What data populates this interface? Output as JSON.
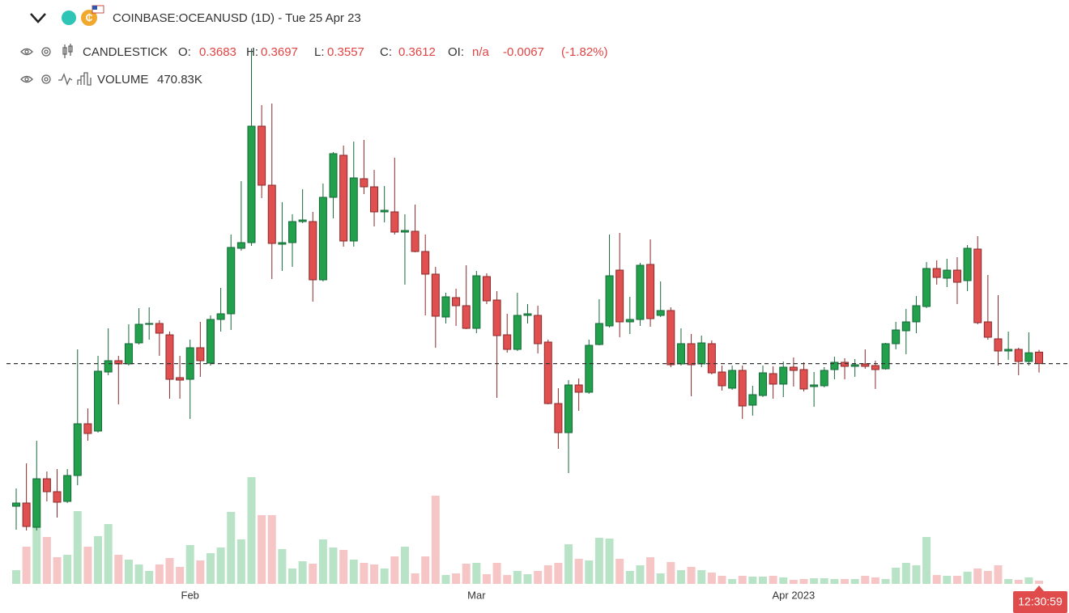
{
  "chart_data": {
    "type": "candlestick",
    "title": "COINBASE:OCEANUSD (1D) - Tue 25 Apr 23",
    "legend": {
      "name": "CANDLESTICK",
      "o": "O:",
      "h": "H:",
      "l": "L:",
      "c": "C:",
      "oi": "OI:",
      "oi_value": "n/a",
      "change": "-0.0067",
      "change_pct": "(-1.82%)"
    },
    "volume_name": "VOLUME",
    "volume_label": "470.83K",
    "time_label": "12:30:59",
    "colors": {
      "up": "#22a04b",
      "up_edge": "#17693a",
      "down": "#e05050",
      "down_edge": "#8a2a2a",
      "vol_up": "#b9e3c6",
      "vol_down": "#f6c6c6",
      "price_line": "#333333",
      "time_box": "#e04b4b"
    },
    "ylim": [
      0.225,
      0.586
    ],
    "vlim": [
      0,
      20000000
    ],
    "categories": [
      null,
      null,
      null,
      null,
      null,
      null,
      null,
      null,
      null,
      null,
      null,
      null,
      null,
      null,
      null,
      null,
      null,
      "Feb",
      null,
      null,
      null,
      null,
      null,
      null,
      null,
      null,
      null,
      null,
      null,
      null,
      null,
      null,
      null,
      null,
      null,
      null,
      null,
      null,
      null,
      null,
      null,
      null,
      null,
      null,
      null,
      "Mar",
      null,
      null,
      null,
      null,
      null,
      null,
      null,
      null,
      null,
      null,
      null,
      null,
      null,
      null,
      null,
      null,
      null,
      null,
      null,
      null,
      null,
      null,
      null,
      null,
      null,
      null,
      null,
      null,
      null,
      null,
      "Apr 2023",
      null,
      null,
      null,
      null,
      null,
      null,
      null,
      null,
      null,
      null,
      null,
      null,
      null,
      null,
      null,
      null,
      null,
      null,
      null,
      null,
      null,
      null,
      null,
      null
    ],
    "open": [
      0.273,
      0.275,
      0.26,
      0.29,
      0.282,
      0.276,
      0.292,
      0.324,
      0.3195,
      0.356,
      0.363,
      0.361,
      0.374,
      0.3855,
      0.386,
      0.379,
      0.3525,
      0.3515,
      0.371,
      0.3615,
      0.3885,
      0.392,
      0.4325,
      0.436,
      0.508,
      0.4715,
      0.435,
      0.436,
      0.449,
      0.449,
      0.413,
      0.464,
      0.49,
      0.437,
      0.4755,
      0.4705,
      0.455,
      0.455,
      0.4425,
      0.443,
      0.4305,
      0.4165,
      0.39,
      0.402,
      0.397,
      0.383,
      0.415,
      0.4005,
      0.379,
      0.37,
      0.391,
      0.391,
      0.3745,
      0.3365,
      0.3185,
      0.348,
      0.3435,
      0.373,
      0.3845,
      0.419,
      0.387,
      0.3885,
      0.4225,
      0.391,
      0.394,
      0.361,
      0.3735,
      0.361,
      0.3735,
      0.356,
      0.346,
      0.357,
      0.3355,
      0.3415,
      0.355,
      0.3485,
      0.359,
      0.3575,
      0.347,
      0.3475,
      0.3575,
      0.362,
      0.3595,
      0.361,
      0.36,
      0.358,
      0.3735,
      0.3815,
      0.387,
      0.3965,
      0.42,
      0.414,
      0.419,
      0.4125,
      0.432,
      0.387,
      0.3765,
      0.369,
      0.37,
      0.3625,
      0.3683
    ],
    "high": [
      0.284,
      0.2995,
      0.3135,
      0.2945,
      0.296,
      0.296,
      0.37,
      0.3335,
      0.366,
      0.383,
      0.366,
      0.3855,
      0.3955,
      0.396,
      0.388,
      0.381,
      0.366,
      0.376,
      0.387,
      0.391,
      0.408,
      0.441,
      0.474,
      0.556,
      0.521,
      0.522,
      0.461,
      0.4535,
      0.469,
      0.455,
      0.4725,
      0.492,
      0.496,
      0.4985,
      0.4995,
      0.481,
      0.471,
      0.4885,
      0.4535,
      0.4595,
      0.441,
      0.421,
      0.405,
      0.4075,
      0.422,
      0.4185,
      0.417,
      0.406,
      0.392,
      0.405,
      0.398,
      0.397,
      0.376,
      0.346,
      0.351,
      0.352,
      0.376,
      0.401,
      0.441,
      0.442,
      0.4025,
      0.4235,
      0.438,
      0.412,
      0.396,
      0.383,
      0.3795,
      0.3785,
      0.3755,
      0.36,
      0.36,
      0.36,
      0.3475,
      0.36,
      0.3595,
      0.3625,
      0.365,
      0.362,
      0.356,
      0.359,
      0.3655,
      0.3645,
      0.364,
      0.37,
      0.363,
      0.374,
      0.387,
      0.395,
      0.403,
      0.424,
      0.425,
      0.426,
      0.427,
      0.4345,
      0.44,
      0.416,
      0.4035,
      0.381,
      0.371,
      0.3805,
      0.3697
    ],
    "low": [
      0.2585,
      0.258,
      0.258,
      0.276,
      0.266,
      0.275,
      0.286,
      0.3135,
      0.3185,
      0.354,
      0.336,
      0.36,
      0.373,
      0.376,
      0.366,
      0.3395,
      0.3395,
      0.327,
      0.353,
      0.36,
      0.381,
      0.382,
      0.431,
      0.434,
      0.4635,
      0.4135,
      0.4185,
      0.421,
      0.448,
      0.3995,
      0.412,
      0.451,
      0.4335,
      0.4335,
      0.466,
      0.446,
      0.4485,
      0.441,
      0.41,
      0.43,
      0.391,
      0.371,
      0.386,
      0.3845,
      0.3825,
      0.38,
      0.398,
      0.34,
      0.368,
      0.369,
      0.386,
      0.3675,
      0.336,
      0.3085,
      0.2935,
      0.332,
      0.3425,
      0.3725,
      0.3835,
      0.3775,
      0.3795,
      0.3845,
      0.384,
      0.39,
      0.359,
      0.36,
      0.341,
      0.359,
      0.3545,
      0.3445,
      0.345,
      0.327,
      0.329,
      0.3405,
      0.3395,
      0.3405,
      0.347,
      0.344,
      0.3345,
      0.3465,
      0.3515,
      0.3515,
      0.353,
      0.358,
      0.3455,
      0.3575,
      0.37,
      0.367,
      0.38,
      0.3955,
      0.41,
      0.4085,
      0.398,
      0.406,
      0.3855,
      0.376,
      0.36,
      0.3635,
      0.354,
      0.36,
      0.3557
    ],
    "close": [
      0.275,
      0.2605,
      0.29,
      0.282,
      0.2755,
      0.292,
      0.324,
      0.318,
      0.3565,
      0.363,
      0.361,
      0.3735,
      0.3855,
      0.386,
      0.38,
      0.3515,
      0.351,
      0.371,
      0.363,
      0.3885,
      0.392,
      0.433,
      0.436,
      0.508,
      0.4715,
      0.4355,
      0.436,
      0.449,
      0.45,
      0.413,
      0.464,
      0.491,
      0.437,
      0.476,
      0.4705,
      0.455,
      0.456,
      0.4425,
      0.4435,
      0.4305,
      0.4165,
      0.3905,
      0.4025,
      0.397,
      0.383,
      0.4155,
      0.4,
      0.3785,
      0.37,
      0.391,
      0.392,
      0.3735,
      0.3365,
      0.3185,
      0.348,
      0.3435,
      0.3725,
      0.386,
      0.4155,
      0.387,
      0.3885,
      0.422,
      0.389,
      0.394,
      0.3605,
      0.3735,
      0.3605,
      0.374,
      0.3555,
      0.3475,
      0.357,
      0.335,
      0.342,
      0.3555,
      0.3485,
      0.359,
      0.357,
      0.3455,
      0.348,
      0.357,
      0.362,
      0.3595,
      0.3605,
      0.3595,
      0.3575,
      0.3735,
      0.382,
      0.387,
      0.397,
      0.42,
      0.4145,
      0.419,
      0.4115,
      0.4325,
      0.3865,
      0.3775,
      0.369,
      0.37,
      0.3625,
      0.3679,
      0.3612
    ],
    "volume": [
      2000900,
      5414200,
      8239000,
      6826600,
      3884100,
      4237200,
      10593000,
      5414200,
      6944300,
      8709800,
      4237200,
      3531000,
      2824800,
      1883200,
      2824800,
      3766400,
      2471700,
      5649600,
      3413300,
      4472600,
      5296500,
      10475300,
      6473500,
      15536400,
      10004500,
      10004500,
      5061100,
      2236300,
      3295600,
      2942500,
      6473500,
      5296500,
      4943400,
      3531000,
      3060200,
      2824800,
      2236300,
      4001800,
      5414200,
      1530100,
      4001800,
      12829300,
      1294700,
      1530100,
      2942500,
      3060200,
      1412400,
      3060200,
      1294700,
      1883200,
      1412400,
      1883200,
      2707100,
      3060200,
      5767300,
      3648700,
      3413300,
      6708900,
      6591200,
      3648700,
      1883200,
      2707100,
      3884100,
      1530100,
      3177900,
      2000900,
      2471700,
      2000900,
      1647800,
      1177000,
      706200,
      1177000,
      1059300,
      1059300,
      1177000,
      941600,
      588500,
      706200,
      823900,
      823900,
      706200,
      706200,
      706200,
      1177000,
      941600,
      706200,
      2354000,
      3060200,
      2707100,
      6826600,
      1294700,
      1177000,
      1177000,
      1765500,
      2236300,
      1883200,
      2707100,
      706200,
      588500,
      941600,
      470830
    ]
  }
}
